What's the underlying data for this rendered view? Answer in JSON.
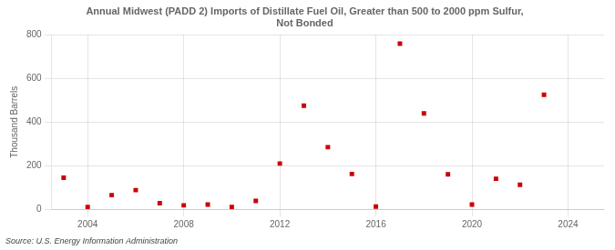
{
  "chart_data": {
    "type": "scatter",
    "title": "Annual Midwest (PADD 2) Imports of Distillate Fuel Oil, Greater than 500 to 2000 ppm Sulfur,\nNot Bonded",
    "ylabel": "Thousand Barrels",
    "annotation": "Source: U.S. Energy Information Administration",
    "x": [
      2003,
      2004,
      2005,
      2006,
      2007,
      2008,
      2009,
      2010,
      2011,
      2012,
      2013,
      2014,
      2015,
      2016,
      2017,
      2018,
      2019,
      2020,
      2021,
      2022,
      2023
    ],
    "values": [
      145,
      10,
      65,
      88,
      28,
      18,
      22,
      10,
      38,
      210,
      475,
      285,
      162,
      12,
      760,
      440,
      160,
      22,
      140,
      112,
      525
    ],
    "color": "#cc0000",
    "marker": "square",
    "xlim": [
      2002.5,
      2025.5
    ],
    "xticks": [
      2004,
      2008,
      2012,
      2016,
      2020,
      2024
    ],
    "ylim": [
      0,
      800
    ],
    "yticks": [
      0,
      200,
      400,
      600,
      800
    ],
    "grid": true
  }
}
